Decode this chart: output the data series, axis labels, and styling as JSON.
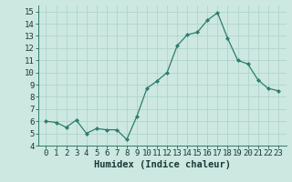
{
  "x": [
    0,
    1,
    2,
    3,
    4,
    5,
    6,
    7,
    8,
    9,
    10,
    11,
    12,
    13,
    14,
    15,
    16,
    17,
    18,
    19,
    20,
    21,
    22,
    23
  ],
  "y": [
    6.0,
    5.9,
    5.5,
    6.1,
    5.0,
    5.4,
    5.3,
    5.3,
    4.5,
    6.4,
    8.7,
    9.3,
    10.0,
    12.2,
    13.1,
    13.3,
    14.3,
    14.9,
    12.8,
    11.0,
    10.7,
    9.4,
    8.7,
    8.5
  ],
  "line_color": "#2d7d6e",
  "marker_color": "#2d7d6e",
  "bg_color": "#cce8e0",
  "grid_color": "#b0d4cc",
  "xlabel": "Humidex (Indice chaleur)",
  "ylim": [
    4,
    15.5
  ],
  "yticks": [
    4,
    5,
    6,
    7,
    8,
    9,
    10,
    11,
    12,
    13,
    14,
    15
  ],
  "xticks": [
    0,
    1,
    2,
    3,
    4,
    5,
    6,
    7,
    8,
    9,
    10,
    11,
    12,
    13,
    14,
    15,
    16,
    17,
    18,
    19,
    20,
    21,
    22,
    23
  ],
  "xlabel_fontsize": 7.5,
  "tick_fontsize": 6.5
}
